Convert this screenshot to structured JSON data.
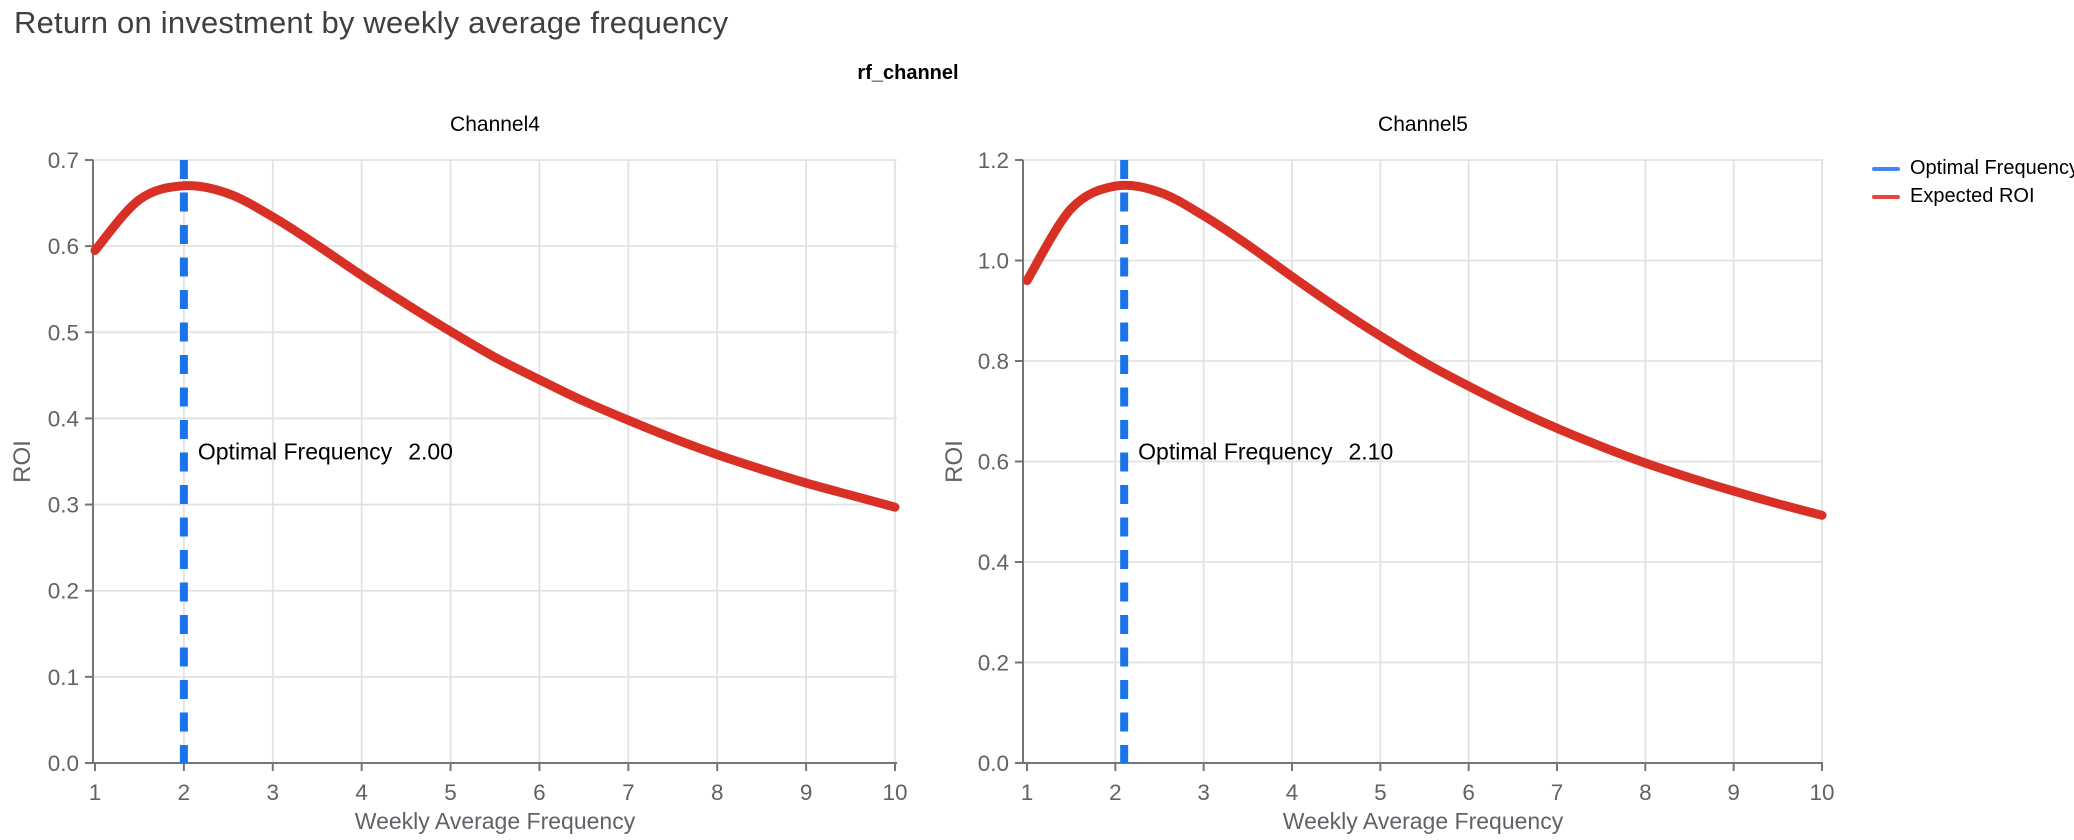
{
  "page": {
    "title": "Return on investment by weekly average frequency",
    "subtitle": "rf_channel"
  },
  "legend": {
    "position": "top-right",
    "items": [
      {
        "label": "Optimal Frequency",
        "color": "#4285F4"
      },
      {
        "label": "Expected ROI",
        "color": "#E8453C"
      }
    ]
  },
  "colors": {
    "expected_roi_red": "#D93025",
    "optimal_frequency_blue": "#1A73E8",
    "axis_text_gray": "#5F6368",
    "axis_line_gray": "#757575",
    "gridline_gray": "#E2E2E2",
    "title_gray": "#3C4043",
    "annotation_black": "#000000"
  },
  "chart_data": [
    {
      "type": "line",
      "title": "Channel4",
      "xlabel": "Weekly Average Frequency",
      "ylabel": "ROI",
      "xlim": [
        1,
        10
      ],
      "ylim": [
        0.0,
        0.7
      ],
      "xticks": [
        1,
        2,
        3,
        4,
        5,
        6,
        7,
        8,
        9,
        10
      ],
      "yticks": [
        0.0,
        0.1,
        0.2,
        0.3,
        0.4,
        0.5,
        0.6,
        0.7
      ],
      "ytick_labels": [
        "0.0",
        "0.1",
        "0.2",
        "0.3",
        "0.4",
        "0.5",
        "0.6",
        "0.7"
      ],
      "grid": true,
      "optimal_frequency": 2.0,
      "annotation_label": "Optimal Frequency",
      "annotation_value": "2.00",
      "series": [
        {
          "name": "Expected ROI",
          "x": [
            1,
            1.5,
            2,
            2.5,
            3,
            3.5,
            4,
            4.5,
            5,
            5.5,
            6,
            6.5,
            7,
            7.5,
            8,
            8.5,
            9,
            9.5,
            10
          ],
          "y": [
            0.595,
            0.654,
            0.67,
            0.661,
            0.634,
            0.601,
            0.566,
            0.533,
            0.501,
            0.471,
            0.445,
            0.42,
            0.398,
            0.377,
            0.358,
            0.341,
            0.325,
            0.311,
            0.297
          ]
        }
      ]
    },
    {
      "type": "line",
      "title": "Channel5",
      "xlabel": "Weekly Average Frequency",
      "ylabel": "ROI",
      "xlim": [
        1,
        10
      ],
      "ylim": [
        0.0,
        1.2
      ],
      "xticks": [
        1,
        2,
        3,
        4,
        5,
        6,
        7,
        8,
        9,
        10
      ],
      "yticks": [
        0.0,
        0.2,
        0.4,
        0.6,
        0.8,
        1.0,
        1.2
      ],
      "ytick_labels": [
        "0.0",
        "0.2",
        "0.4",
        "0.6",
        "0.8",
        "1.0",
        "1.2"
      ],
      "grid": true,
      "optimal_frequency": 2.1,
      "annotation_label": "Optimal Frequency",
      "annotation_value": "2.10",
      "series": [
        {
          "name": "Expected ROI",
          "x": [
            1,
            1.5,
            2,
            2.5,
            3,
            3.5,
            4,
            4.5,
            5,
            5.5,
            6,
            6.5,
            7,
            7.5,
            8,
            8.5,
            9,
            9.5,
            10
          ],
          "y": [
            0.96,
            1.103,
            1.148,
            1.136,
            1.089,
            1.031,
            0.968,
            0.907,
            0.85,
            0.797,
            0.75,
            0.706,
            0.666,
            0.63,
            0.597,
            0.568,
            0.541,
            0.516,
            0.493
          ]
        }
      ]
    }
  ]
}
